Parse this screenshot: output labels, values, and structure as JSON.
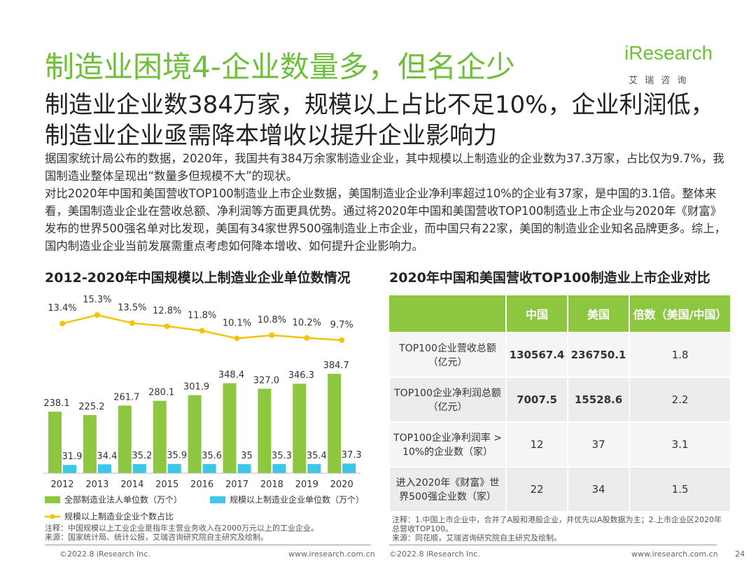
{
  "header": {
    "title": "制造业困境4-企业数量多，但名企少",
    "logo": "iResearch",
    "logo_sub": "艾 瑞 咨 询",
    "subtitle": "制造业企业数384万家，规模以上占比不足10%，企业利润低，制造业企业亟需降本增收以提升企业影响力"
  },
  "body": {
    "paragraphs": [
      "据国家统计局公布的数据，2020年，我国共有384万余家制造业企业，其中规模以上制造业的企业数为37.3万家，占比仅为9.7%，我国制造业整体呈现出“数量多但规模不大”的现状。",
      "对比2020年中国和美国营收TOP100制造业上市企业数据，美国制造业企业净利率超过10%的企业有37家，是中国的3.1倍。整体来看，美国制造业企业在营收总额、净利润等方面更具优势。通过将2020年中国和美国营收TOP100制造业上市企业与2020年《财富》发布的世界500强名单对比发现，美国有34家世界500强制造业上市企业，而中国只有22家，美国的制造业企业知名品牌更多。综上，国内制造业企业当前发展需重点考虑如何降本增收、如何提升企业影响力。"
    ]
  },
  "chart_data": {
    "type": "bar",
    "title": "2012-2020年中国规模以上制造业企业单位数情况",
    "categories": [
      "2012",
      "2013",
      "2014",
      "2015",
      "2016",
      "2017",
      "2018",
      "2019",
      "2020"
    ],
    "series": [
      {
        "name": "全部制造业法人单位数（万个）",
        "color": "#8dc63f",
        "values": [
          238.1,
          225.2,
          261.7,
          280.1,
          301.9,
          348.4,
          327.0,
          346.3,
          384.7
        ],
        "value_labels": [
          "238.1",
          "225.2",
          "261.7",
          "280.1",
          "301.9",
          "348.4",
          "327.0",
          "346.3",
          "384.7"
        ]
      },
      {
        "name": "规模以上制造业企业单位数（万个）",
        "color": "#3cc6e8",
        "values": [
          31.9,
          34.4,
          35.2,
          35.9,
          35.6,
          35.0,
          35.3,
          35.4,
          37.3
        ]
      },
      {
        "name": "规模以上制造业企业个数占比",
        "color": "#f5c400",
        "type": "line",
        "values": [
          13.4,
          15.3,
          13.5,
          12.8,
          11.8,
          10.1,
          10.8,
          10.2,
          9.7
        ],
        "value_labels": [
          "13.4%",
          "15.3%",
          "13.5%",
          "12.8%",
          "11.8%",
          "10.1%",
          "10.8%",
          "10.2%",
          "9.7%"
        ]
      }
    ],
    "notes": [
      "注释：中国规模以上工业企业是指年主营业务收入在2000万元以上的工业企业。",
      "来源：国家统计局、统计公报，艾瑞咨询研究院自主研究及绘制。"
    ]
  },
  "table": {
    "title": "2020年中国和美国营收TOP100制造业上市企业对比",
    "header": [
      "中国",
      "美国",
      "倍数（美国/中国）"
    ],
    "rows": [
      [
        "TOP100企业营收总额（亿元）",
        "130567.4",
        "236750.1",
        "1.8"
      ],
      [
        "TOP100企业净利润总额（亿元）",
        "7007.5",
        "15528.6",
        "2.2"
      ],
      [
        "TOP100企业净利润率 > 10%的企业数（家）",
        "12",
        "37",
        "3.1"
      ],
      [
        "进入2020年《财富》世界500强企业数（家）",
        "22",
        "34",
        "1.5"
      ]
    ],
    "notes": [
      "注释：1.中国上市企业中，合并了A股和港股企业，并优先以A股数据为主；2.上市企业区2020年总营收TOP100。",
      "来源：同花顺，艾瑞咨询研究院自主研究及绘制。"
    ]
  },
  "footer": {
    "copyright": "©2022.8 iResearch Inc.",
    "url": "www.iresearch.com.cn",
    "page": "24"
  }
}
